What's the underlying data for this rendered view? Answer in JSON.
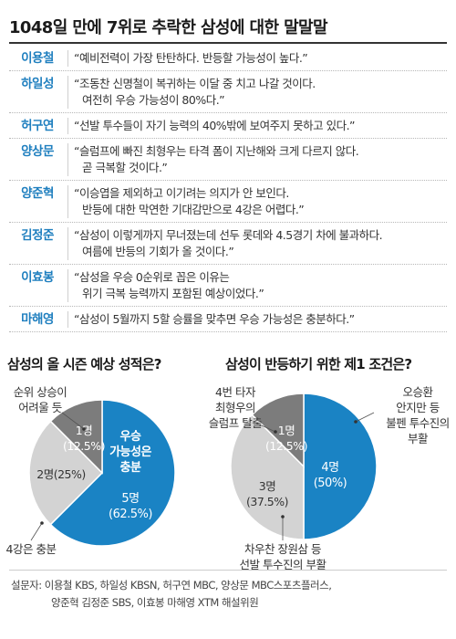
{
  "title": "1048일 만에 7위로 추락한 삼성에 대한 말말말",
  "comments": [
    {
      "name": "이용철",
      "lines": [
        "“예비전력이 가장 탄탄하다. 반등할 가능성이 높다.”"
      ]
    },
    {
      "name": "하일성",
      "lines": [
        "“조동찬 신명철이 복귀하는 이달 중 치고 나갈 것이다.",
        "여전히 우승 가능성이 80%다.”"
      ]
    },
    {
      "name": "허구연",
      "lines": [
        "“선발 투수들이 자기 능력의 40%밖에 보여주지 못하고 있다.”"
      ]
    },
    {
      "name": "양상문",
      "lines": [
        "“슬럼프에 빠진 최형우는 타격 폼이 지난해와 크게 다르지 않다.",
        "곧 극복할 것이다.”"
      ]
    },
    {
      "name": "양준혁",
      "lines": [
        "“이승엽을 제외하고 이기려는 의지가 안 보인다.",
        "반등에 대한 막연한 기대감만으로 4강은 어렵다.”"
      ]
    },
    {
      "name": "김정준",
      "lines": [
        "“삼성이 이렇게까지 무너졌는데 선두 롯데와 4.5경기 차에 불과하다.",
        "여름에 반등의 기회가 올 것이다.”"
      ]
    },
    {
      "name": "이효봉",
      "lines": [
        "“삼성을 우승 0순위로 꼽은 이유는",
        "위기 극복 능력까지 포함된 예상이었다.”"
      ]
    },
    {
      "name": "마해영",
      "lines": [
        "“삼성이 5월까지 5할 승률을 맞추면 우승 가능성은 충분하다.”"
      ]
    }
  ],
  "chart_data": [
    {
      "type": "pie",
      "title": "삼성의 올 시즌 예상 성적은?",
      "slices": [
        {
          "label": "우승 가능성은 충분",
          "count_label": "5명",
          "pct_label": "(62.5%)",
          "value": 62.5,
          "color": "#1a83c4"
        },
        {
          "label": "4강은 충분",
          "count_label": "2명(25%)",
          "value": 25,
          "color": "#d3d3d3"
        },
        {
          "label": "순위 상승이 어려울 듯",
          "count_label": "1명",
          "pct_label": "(12.5%)",
          "value": 12.5,
          "color": "#7c7c7c"
        }
      ],
      "annotations": {
        "in_slice_label": [
          "우승",
          "가능성은",
          "충분"
        ],
        "top_callout": [
          "순위 상승이",
          "어려울 듯"
        ],
        "bottom_callout": "4강은 충분"
      }
    },
    {
      "type": "pie",
      "title": "삼성이 반등하기 위한 제1 조건은?",
      "slices": [
        {
          "label": "오승환 안지만 등 불펜 투수진의 부활",
          "count_label": "4명",
          "pct_label": "(50%)",
          "value": 50,
          "color": "#1a83c4"
        },
        {
          "label": "차우찬 장원삼 등 선발 투수진의 부활",
          "count_label": "3명",
          "pct_label": "(37.5%)",
          "value": 37.5,
          "color": "#d3d3d3"
        },
        {
          "label": "4번 타자 최형우의 슬럼프 탈출",
          "count_label": "1명",
          "pct_label": "(12.5%)",
          "value": 12.5,
          "color": "#7c7c7c"
        }
      ],
      "annotations": {
        "left_callout": [
          "4번 타자",
          "최형우의",
          "슬럼프 탈출"
        ],
        "right_callout": [
          "오승환",
          "안지만 등",
          "불펜 투수진의",
          "부활"
        ],
        "bottom_callout": [
          "차우찬 장원삼 등",
          "선발 투수진의 부활"
        ]
      }
    }
  ],
  "footer": {
    "line1": "설문자: 이용철 KBS, 하일성 KBSN, 허구연 MBC, 양상문 MBC스포츠플러스,",
    "line2": "양준혁 김정준 SBS, 이효봉 마해영 XTM 해설위원"
  }
}
